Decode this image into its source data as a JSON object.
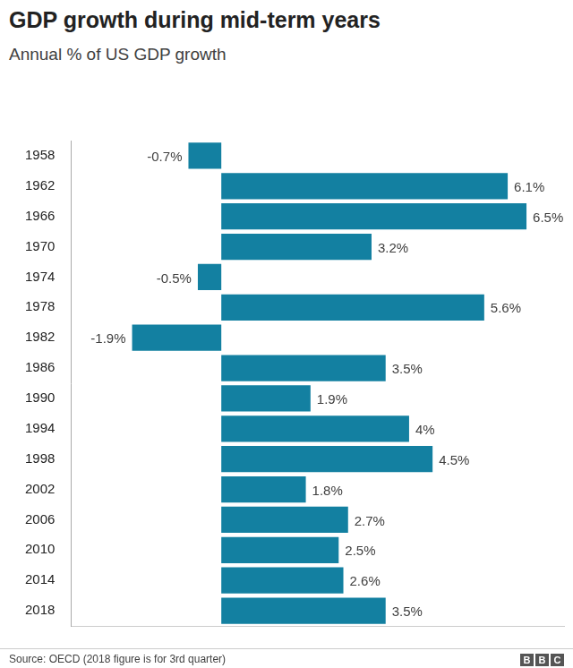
{
  "chart_data": {
    "type": "bar",
    "orientation": "horizontal",
    "title": "GDP growth during mid-term years",
    "subtitle": "Annual % of US GDP growth",
    "source": "Source: OECD (2018 figure is for 3rd quarter)",
    "logo": "BBC",
    "categories": [
      "1958",
      "1962",
      "1966",
      "1970",
      "1974",
      "1978",
      "1982",
      "1986",
      "1990",
      "1994",
      "1998",
      "2002",
      "2006",
      "2010",
      "2014",
      "2018"
    ],
    "values": [
      -0.7,
      6.1,
      6.5,
      3.2,
      -0.5,
      5.6,
      -1.9,
      3.5,
      1.9,
      4,
      4.5,
      1.8,
      2.7,
      2.5,
      2.6,
      3.5
    ],
    "value_labels": [
      "-0.7%",
      "6.1%",
      "6.5%",
      "3.2%",
      "-0.5%",
      "5.6%",
      "-1.9%",
      "3.5%",
      "1.9%",
      "4%",
      "4.5%",
      "1.8%",
      "2.7%",
      "2.5%",
      "2.6%",
      "3.5%"
    ],
    "color": "#1380a1",
    "xlim": [
      -3.2,
      7.3
    ],
    "grid": false,
    "data_labels": true,
    "tick_labels": "y"
  }
}
